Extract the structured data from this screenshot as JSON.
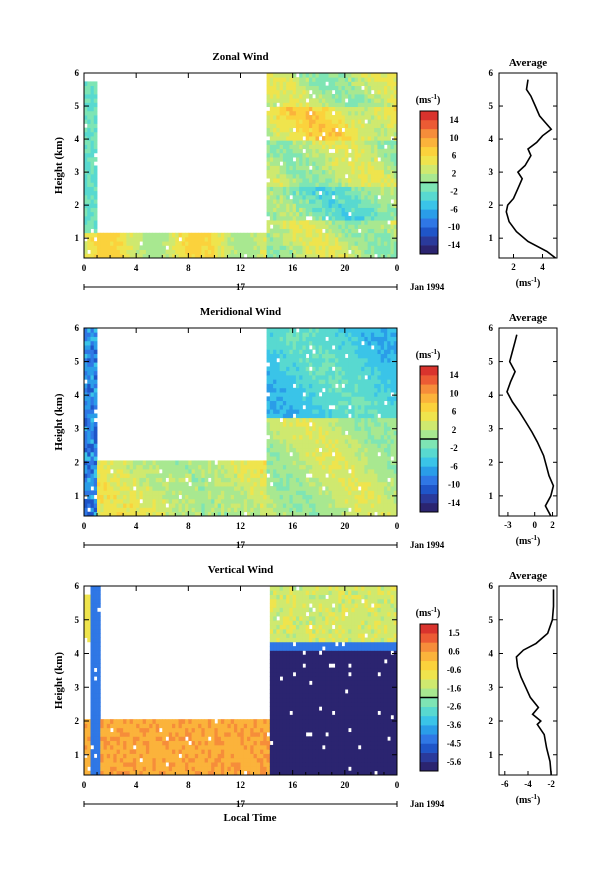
{
  "figure": {
    "xlabel": "Local Time",
    "date_label": "Jan 1994",
    "day_label": "17"
  },
  "chart_data": [
    {
      "type": "heatmap",
      "title": "Zonal Wind",
      "ylabel": "Height (km)",
      "unit": "(ms",
      "unit_sup": "-1",
      "unit_close": ")",
      "xticks": [
        "0",
        "4",
        "8",
        "12",
        "16",
        "20",
        "0"
      ],
      "yticks": [
        "1",
        "2",
        "3",
        "4",
        "5",
        "6"
      ],
      "ylim": [
        0.4,
        6.0
      ],
      "xlim": [
        0,
        24
      ],
      "colorbar": {
        "ticks": [
          "14",
          "10",
          "6",
          "2",
          "-2",
          "-6",
          "-10",
          "-14"
        ],
        "min": -16,
        "max": 16
      },
      "avg_profile": {
        "title": "Average",
        "xticks": [
          "2",
          "4"
        ],
        "xlim": [
          1,
          5
        ],
        "xlabel": "(ms",
        "xlabel_sup": "-1",
        "xlabel_close": ")",
        "yticks": [
          "1",
          "2",
          "3",
          "4",
          "5",
          "6"
        ],
        "ylim": [
          0.4,
          6.0
        ],
        "points": [
          [
            4.9,
            0.4
          ],
          [
            4.3,
            0.6
          ],
          [
            3.0,
            0.9
          ],
          [
            2.2,
            1.2
          ],
          [
            1.7,
            1.5
          ],
          [
            1.5,
            1.8
          ],
          [
            1.6,
            2.0
          ],
          [
            2.0,
            2.2
          ],
          [
            2.3,
            2.5
          ],
          [
            2.6,
            2.8
          ],
          [
            2.3,
            3.0
          ],
          [
            2.8,
            3.2
          ],
          [
            3.2,
            3.5
          ],
          [
            3.0,
            3.7
          ],
          [
            3.6,
            3.9
          ],
          [
            4.0,
            4.1
          ],
          [
            4.6,
            4.3
          ],
          [
            4.2,
            4.5
          ],
          [
            3.8,
            4.7
          ],
          [
            3.5,
            5.0
          ],
          [
            3.2,
            5.3
          ],
          [
            2.9,
            5.5
          ],
          [
            3.0,
            5.8
          ]
        ]
      }
    },
    {
      "type": "heatmap",
      "title": "Meridional Wind",
      "ylabel": "Height (km)",
      "unit": "(ms",
      "unit_sup": "-1",
      "unit_close": ")",
      "xticks": [
        "0",
        "4",
        "8",
        "12",
        "16",
        "20",
        "0"
      ],
      "yticks": [
        "1",
        "2",
        "3",
        "4",
        "5",
        "6"
      ],
      "ylim": [
        0.4,
        6.0
      ],
      "xlim": [
        0,
        24
      ],
      "colorbar": {
        "ticks": [
          "14",
          "10",
          "6",
          "2",
          "-2",
          "-6",
          "-10",
          "-14"
        ],
        "min": -16,
        "max": 16
      },
      "avg_profile": {
        "title": "Average",
        "xticks": [
          "-3",
          "0",
          "2"
        ],
        "xlim": [
          -4,
          2.5
        ],
        "xlabel": "(ms",
        "xlabel_sup": "-1",
        "xlabel_close": ")",
        "yticks": [
          "1",
          "2",
          "3",
          "4",
          "5",
          "6"
        ],
        "ylim": [
          0.4,
          6.0
        ],
        "points": [
          [
            1.8,
            0.4
          ],
          [
            1.2,
            0.7
          ],
          [
            1.8,
            1.0
          ],
          [
            2.1,
            1.3
          ],
          [
            1.6,
            1.6
          ],
          [
            1.3,
            1.9
          ],
          [
            1.0,
            2.2
          ],
          [
            0.3,
            2.6
          ],
          [
            -0.3,
            2.9
          ],
          [
            -1.0,
            3.2
          ],
          [
            -1.7,
            3.5
          ],
          [
            -2.5,
            3.8
          ],
          [
            -3.1,
            4.1
          ],
          [
            -2.7,
            4.4
          ],
          [
            -2.2,
            4.7
          ],
          [
            -2.8,
            5.0
          ],
          [
            -2.5,
            5.3
          ],
          [
            -2.2,
            5.6
          ],
          [
            -2.0,
            5.8
          ]
        ]
      }
    },
    {
      "type": "heatmap",
      "title": "Vertical Wind",
      "ylabel": "Height (km)",
      "unit": "(ms",
      "unit_sup": "-1",
      "unit_close": ")",
      "xticks": [
        "0",
        "4",
        "8",
        "12",
        "16",
        "20",
        "0"
      ],
      "yticks": [
        "1",
        "2",
        "3",
        "4",
        "5",
        "6"
      ],
      "ylim": [
        0.4,
        6.0
      ],
      "xlim": [
        0,
        24
      ],
      "colorbar": {
        "ticks": [
          "1.5",
          "0.6",
          "-0.6",
          "-1.6",
          "-2.6",
          "-3.6",
          "-4.5",
          "-5.6"
        ],
        "min": -6.0,
        "max": 2.0
      },
      "avg_profile": {
        "title": "Average",
        "xticks": [
          "-6",
          "-4",
          "-2"
        ],
        "xlim": [
          -6.5,
          -1.5
        ],
        "xlabel": "(ms",
        "xlabel_sup": "-1",
        "xlabel_close": ")",
        "yticks": [
          "1",
          "2",
          "3",
          "4",
          "5",
          "6"
        ],
        "ylim": [
          0.4,
          6.0
        ],
        "points": [
          [
            -2.0,
            0.4
          ],
          [
            -2.1,
            0.8
          ],
          [
            -2.4,
            1.2
          ],
          [
            -2.6,
            1.6
          ],
          [
            -3.2,
            1.9
          ],
          [
            -2.9,
            2.0
          ],
          [
            -3.6,
            2.2
          ],
          [
            -3.1,
            2.4
          ],
          [
            -3.8,
            2.7
          ],
          [
            -4.2,
            3.0
          ],
          [
            -4.6,
            3.3
          ],
          [
            -4.9,
            3.6
          ],
          [
            -5.0,
            3.9
          ],
          [
            -4.4,
            4.1
          ],
          [
            -3.3,
            4.3
          ],
          [
            -2.3,
            4.6
          ],
          [
            -1.9,
            5.0
          ],
          [
            -1.8,
            5.4
          ],
          [
            -1.8,
            5.9
          ]
        ]
      }
    }
  ]
}
